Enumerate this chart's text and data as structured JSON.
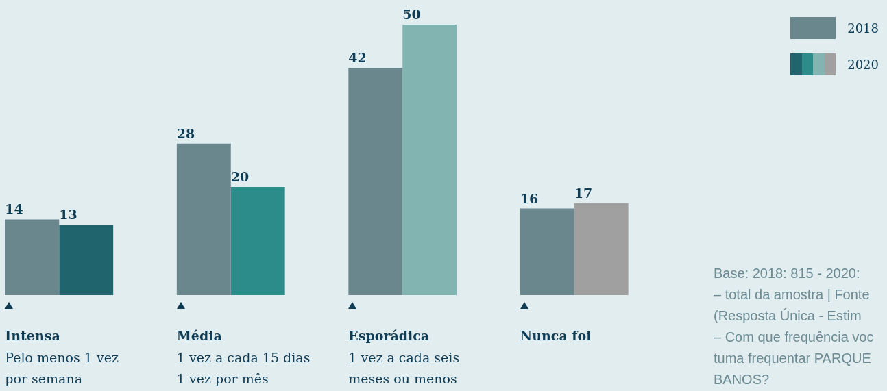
{
  "chart_data": {
    "type": "bar",
    "categories": [
      "Intensa\nPelo menos 1 vez\npor semana",
      "Média\n1 vez a cada 15 dias\n1 vez por mês",
      "Esporádica\n1 vez a cada seis\nmeses ou menos",
      "Nunca foi"
    ],
    "series": [
      {
        "name": "2018",
        "color": "#6a878e",
        "values": [
          14,
          28,
          42,
          16
        ]
      },
      {
        "name": "2020",
        "colors": [
          "#20656d",
          "#2b8c8a",
          "#82b4b2",
          "#a0a0a0"
        ],
        "values": [
          13,
          20,
          50,
          17
        ]
      }
    ],
    "data_labels": true,
    "legend": "top right",
    "tick_labels": "x",
    "annotations": [
      "Base: 2018: 815 - 2020:\n– total da amostra | Fonte\n(Resposta Única - Estim\n– Com que frequência voc\ntuma frequentar PARQUE\nBANOS?"
    ]
  }
}
